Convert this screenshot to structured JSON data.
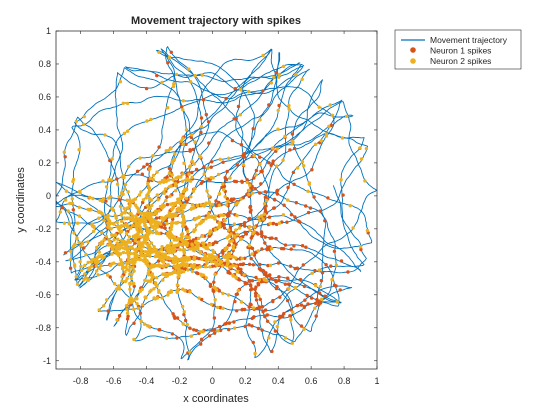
{
  "chart_data": {
    "type": "scatter",
    "title": "Movement trajectory with spikes",
    "xlabel": "x coordinates",
    "ylabel": "y coordinates",
    "xlim": [
      -0.95,
      1.0
    ],
    "ylim": [
      -1.05,
      1.0
    ],
    "xticks": [
      -0.8,
      -0.6,
      -0.4,
      -0.2,
      0,
      0.2,
      0.4,
      0.6,
      0.8,
      1
    ],
    "xtick_labels": [
      "-0.8",
      "-0.6",
      "-0.4",
      "-0.2",
      "0",
      "0.2",
      "0.4",
      "0.6",
      "0.8",
      "1"
    ],
    "yticks": [
      -1,
      -0.8,
      -0.6,
      -0.4,
      -0.2,
      0,
      0.2,
      0.4,
      0.6,
      0.8,
      1
    ],
    "ytick_labels": [
      "-1",
      "-0.8",
      "-0.6",
      "-0.4",
      "-0.2",
      "0",
      "0.2",
      "0.4",
      "0.6",
      "0.8",
      "1"
    ],
    "grid": false,
    "legend_position": "outside-top-right",
    "arena": {
      "center": [
        0.02,
        -0.03
      ],
      "radius": 0.98
    },
    "series": [
      {
        "name": "Movement trajectory",
        "kind": "line",
        "color": "#0072BD",
        "note_values": "dense random-walk path filling the circular arena"
      },
      {
        "name": "Neuron 1 spikes",
        "kind": "dots",
        "color": "#D95319",
        "region": {
          "center": [
            0.05,
            -0.35
          ],
          "spread": [
            0.3,
            0.3
          ]
        }
      },
      {
        "name": "Neuron 2 spikes",
        "kind": "dots",
        "color": "#EDB120",
        "region": {
          "center": [
            -0.3,
            -0.3
          ],
          "spread": [
            0.25,
            0.25
          ]
        }
      }
    ]
  }
}
